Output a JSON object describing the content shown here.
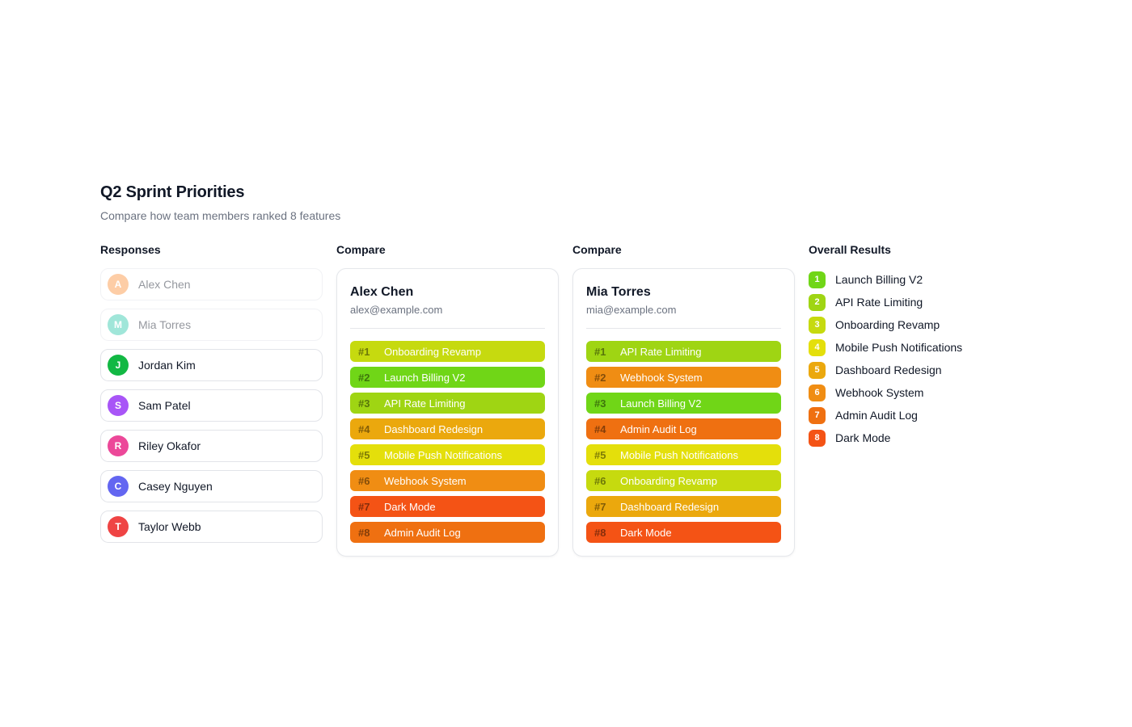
{
  "page": {
    "title": "Q2 Sprint Priorities",
    "subtitle": "Compare how team members ranked 8 features"
  },
  "responses": {
    "header": "Responses",
    "members": [
      {
        "name": "Alex Chen",
        "initial": "A",
        "color": "#fb923c",
        "faded": true
      },
      {
        "name": "Mia Torres",
        "initial": "M",
        "color": "#2fc9ad",
        "faded": true
      },
      {
        "name": "Jordan Kim",
        "initial": "J",
        "color": "#12b843",
        "faded": false
      },
      {
        "name": "Sam Patel",
        "initial": "S",
        "color": "#a855f7",
        "faded": false
      },
      {
        "name": "Riley Okafor",
        "initial": "R",
        "color": "#ec4899",
        "faded": false
      },
      {
        "name": "Casey Nguyen",
        "initial": "C",
        "color": "#6366f1",
        "faded": false
      },
      {
        "name": "Taylor Webb",
        "initial": "T",
        "color": "#ef4444",
        "faded": false
      }
    ]
  },
  "compare_cards": [
    {
      "header": "Compare",
      "name": "Alex Chen",
      "email": "alex@example.com",
      "rankings": [
        {
          "rank": "#1",
          "feature": "Onboarding Revamp",
          "color": "#c6da0f"
        },
        {
          "rank": "#2",
          "feature": "Launch Billing V2",
          "color": "#70d617"
        },
        {
          "rank": "#3",
          "feature": "API Rate Limiting",
          "color": "#9fd513"
        },
        {
          "rank": "#4",
          "feature": "Dashboard Redesign",
          "color": "#eba80d"
        },
        {
          "rank": "#5",
          "feature": "Mobile Push Notifications",
          "color": "#e4df0b"
        },
        {
          "rank": "#6",
          "feature": "Webhook System",
          "color": "#f08d13"
        },
        {
          "rank": "#7",
          "feature": "Dark Mode",
          "color": "#f45315"
        },
        {
          "rank": "#8",
          "feature": "Admin Audit Log",
          "color": "#ef7011"
        }
      ]
    },
    {
      "header": "Compare",
      "name": "Mia Torres",
      "email": "mia@example.com",
      "rankings": [
        {
          "rank": "#1",
          "feature": "API Rate Limiting",
          "color": "#9fd513"
        },
        {
          "rank": "#2",
          "feature": "Webhook System",
          "color": "#f08d13"
        },
        {
          "rank": "#3",
          "feature": "Launch Billing V2",
          "color": "#70d617"
        },
        {
          "rank": "#4",
          "feature": "Admin Audit Log",
          "color": "#ef7011"
        },
        {
          "rank": "#5",
          "feature": "Mobile Push Notifications",
          "color": "#e4df0b"
        },
        {
          "rank": "#6",
          "feature": "Onboarding Revamp",
          "color": "#c6da0f"
        },
        {
          "rank": "#7",
          "feature": "Dashboard Redesign",
          "color": "#eba80d"
        },
        {
          "rank": "#8",
          "feature": "Dark Mode",
          "color": "#f45315"
        }
      ]
    }
  ],
  "overall": {
    "header": "Overall Results",
    "items": [
      {
        "rank": "1",
        "feature": "Launch Billing V2",
        "color": "#70d617"
      },
      {
        "rank": "2",
        "feature": "API Rate Limiting",
        "color": "#9fd513"
      },
      {
        "rank": "3",
        "feature": "Onboarding Revamp",
        "color": "#c6da0f"
      },
      {
        "rank": "4",
        "feature": "Mobile Push Notifications",
        "color": "#e4df0b"
      },
      {
        "rank": "5",
        "feature": "Dashboard Redesign",
        "color": "#eba80d"
      },
      {
        "rank": "6",
        "feature": "Webhook System",
        "color": "#f08d13"
      },
      {
        "rank": "7",
        "feature": "Admin Audit Log",
        "color": "#ef7011"
      },
      {
        "rank": "8",
        "feature": "Dark Mode",
        "color": "#f45315"
      }
    ]
  }
}
